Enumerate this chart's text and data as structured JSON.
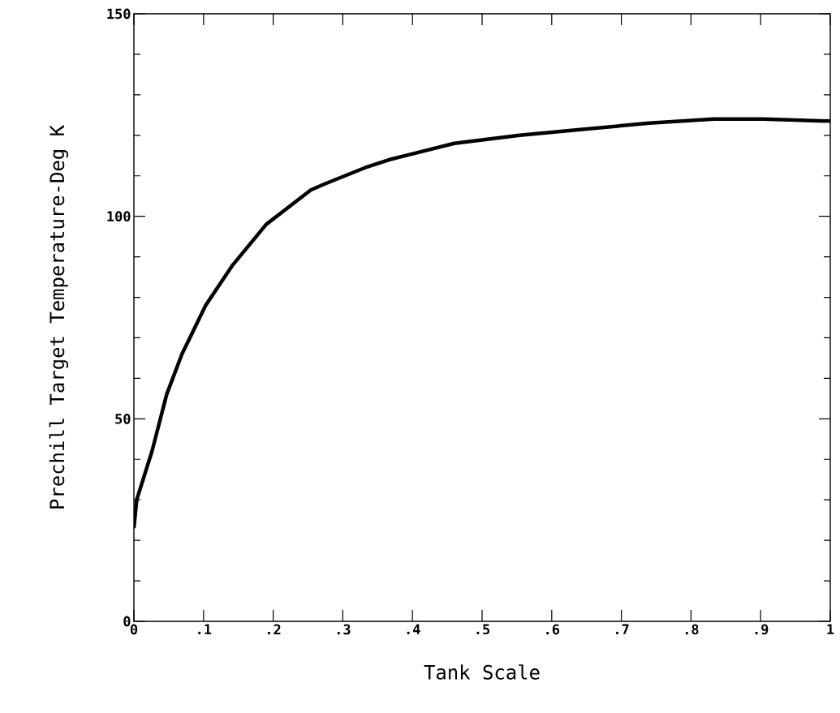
{
  "chart_data": {
    "type": "line",
    "xlabel": "Tank Scale",
    "ylabel": "Prechill Target Temperature-Deg K",
    "xlim": [
      0,
      1
    ],
    "ylim": [
      0,
      150
    ],
    "xticks": [
      0,
      {
        "value": 0.1,
        "label": ".1"
      },
      {
        "value": 0.2,
        "label": ".2"
      },
      {
        "value": 0.3,
        "label": ".3"
      },
      {
        "value": 0.4,
        "label": ".4"
      },
      {
        "value": 0.5,
        "label": ".5"
      },
      {
        "value": 0.6,
        "label": ".6"
      },
      {
        "value": 0.7,
        "label": ".7"
      },
      {
        "value": 0.8,
        "label": ".8"
      },
      {
        "value": 0.9,
        "label": ".9"
      },
      1
    ],
    "yticks": [
      0,
      {
        "value": 10,
        "label": null
      },
      {
        "value": 20,
        "label": null
      },
      {
        "value": 30,
        "label": null
      },
      {
        "value": 40,
        "label": null
      },
      50,
      {
        "value": 60,
        "label": null
      },
      {
        "value": 70,
        "label": null
      },
      {
        "value": 80,
        "label": null
      },
      {
        "value": 90,
        "label": null
      },
      100,
      {
        "value": 110,
        "label": null
      },
      {
        "value": 120,
        "label": null
      },
      {
        "value": 130,
        "label": null
      },
      {
        "value": 140,
        "label": null
      },
      150
    ],
    "marker": "none",
    "line_style": "solid",
    "x": [
      0,
      0.004,
      0.026,
      0.047,
      0.069,
      0.103,
      0.142,
      0.19,
      0.254,
      0.274,
      0.332,
      0.367,
      0.46,
      0.554,
      0.647,
      0.74,
      0.833,
      0.903,
      1.0
    ],
    "series": [
      {
        "color": "#000000",
        "values": [
          23,
          30,
          42,
          56,
          66,
          78,
          88,
          98,
          106.5,
          108,
          112,
          114,
          118,
          120,
          121.5,
          123,
          124,
          124,
          123.5
        ]
      }
    ]
  }
}
